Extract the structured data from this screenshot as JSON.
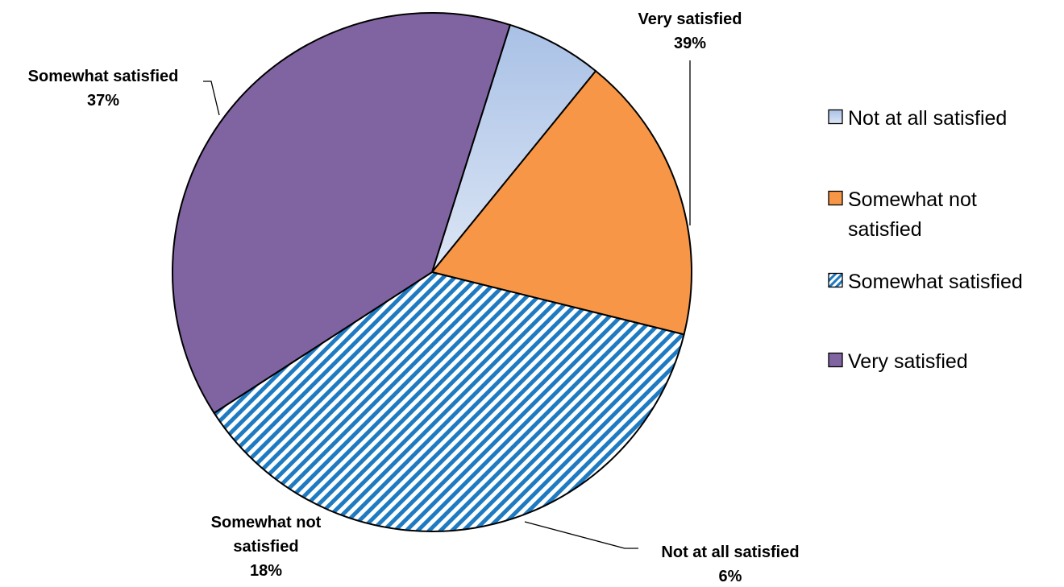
{
  "chart_data": {
    "type": "pie",
    "title": "",
    "unit": "%",
    "slices": [
      {
        "name": "Not at all satisfied",
        "value": 6,
        "label_lines": [
          "Not at all satisfied",
          "6%"
        ],
        "color": "#dce6f5",
        "color_dark": "#a9c1e6",
        "pattern": "gradient"
      },
      {
        "name": "Somewhat not satisfied",
        "value": 18,
        "label_lines": [
          "Somewhat not",
          "satisfied",
          "18%"
        ],
        "color": "#f79646",
        "pattern": "solid"
      },
      {
        "name": "Somewhat satisfied",
        "value": 37,
        "label_lines": [
          "Somewhat satisfied",
          "37%"
        ],
        "color": "#1f7bc1",
        "pattern": "diagonal-stripes"
      },
      {
        "name": "Very satisfied",
        "value": 39,
        "label_lines": [
          "Very satisfied",
          "39%"
        ],
        "color": "#8064a2",
        "pattern": "solid"
      }
    ],
    "legend": {
      "position": "right",
      "entries": [
        {
          "label_lines": [
            "Not at all satisfied"
          ]
        },
        {
          "label_lines": [
            "Somewhat not",
            "satisfied"
          ]
        },
        {
          "label_lines": [
            "Somewhat satisfied"
          ]
        },
        {
          "label_lines": [
            "Very satisfied"
          ]
        }
      ]
    }
  }
}
